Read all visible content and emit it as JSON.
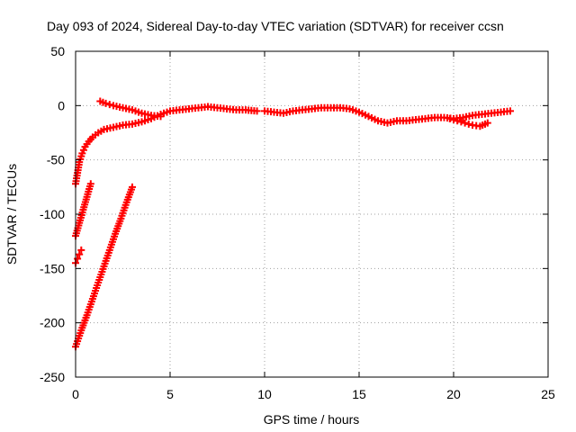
{
  "chart_data": {
    "type": "scatter",
    "title": "Day 093 of 2024, Sidereal Day-to-day VTEC variation (SDTVAR) for receiver ccsn",
    "xlabel": "GPS time / hours",
    "ylabel": "SDTVAR / TECUs",
    "xlim": [
      0,
      25
    ],
    "ylim": [
      -250,
      50
    ],
    "xticks": [
      0,
      5,
      10,
      15,
      20,
      25
    ],
    "yticks": [
      -250,
      -200,
      -150,
      -100,
      -50,
      0,
      50
    ],
    "grid": true,
    "marker": "+",
    "color": "#ff0000",
    "series": [
      {
        "name": "main-track",
        "x": [
          0.0,
          0.1,
          0.2,
          0.35,
          0.5,
          0.7,
          0.9,
          1.2,
          1.5,
          2.0,
          2.5,
          3.0,
          3.5,
          4.0,
          4.5,
          5.0,
          5.5,
          6.0,
          6.5,
          7.0,
          7.5,
          8.0,
          8.5,
          9.0,
          9.6
        ],
        "y": [
          -72,
          -62,
          -52,
          -44,
          -38,
          -33,
          -29,
          -25,
          -22,
          -20,
          -18,
          -17,
          -15,
          -12,
          -8,
          -5,
          -4,
          -3,
          -2,
          -1,
          -2,
          -3,
          -4,
          -4,
          -5
        ]
      },
      {
        "name": "upper-segment",
        "x": [
          1.3,
          1.6,
          2.0,
          2.5,
          3.0,
          3.5,
          4.0,
          4.5
        ],
        "y": [
          4,
          2,
          0,
          -2,
          -4,
          -7,
          -9,
          -10
        ]
      },
      {
        "name": "midday-track",
        "x": [
          10.0,
          10.5,
          11.0,
          11.5,
          12.0,
          12.5,
          13.0,
          13.5,
          14.0,
          14.5,
          15.0,
          15.5,
          16.0,
          16.5,
          17.0,
          17.5,
          18.0,
          18.5,
          19.0,
          19.5,
          20.0,
          20.5,
          21.0,
          21.5,
          22.0,
          22.5,
          23.0
        ],
        "y": [
          -5,
          -6,
          -7,
          -5,
          -4,
          -3,
          -2,
          -2,
          -2,
          -3,
          -6,
          -10,
          -14,
          -16,
          -14,
          -14,
          -13,
          -12,
          -11,
          -11,
          -12,
          -11,
          -9,
          -8,
          -7,
          -6,
          -5
        ]
      },
      {
        "name": "evening-branch",
        "x": [
          19.8,
          20.2,
          20.6,
          21.0,
          21.4,
          21.8
        ],
        "y": [
          -12,
          -14,
          -16,
          -18,
          -19,
          -16
        ]
      },
      {
        "name": "descent-1",
        "x": [
          0.0,
          0.2,
          0.4,
          0.6,
          0.8
        ],
        "y": [
          -120,
          -108,
          -96,
          -84,
          -72
        ]
      },
      {
        "name": "descent-2",
        "x": [
          0.0,
          0.1,
          0.2,
          0.3
        ],
        "y": [
          -145,
          -141,
          -137,
          -133
        ]
      },
      {
        "name": "descent-3",
        "x": [
          0.0,
          0.3,
          0.6,
          0.9,
          1.2,
          1.5,
          1.8,
          2.1,
          2.4,
          2.7,
          3.0
        ],
        "y": [
          -222,
          -207,
          -193,
          -178,
          -163,
          -148,
          -133,
          -118,
          -104,
          -89,
          -75
        ]
      }
    ]
  }
}
